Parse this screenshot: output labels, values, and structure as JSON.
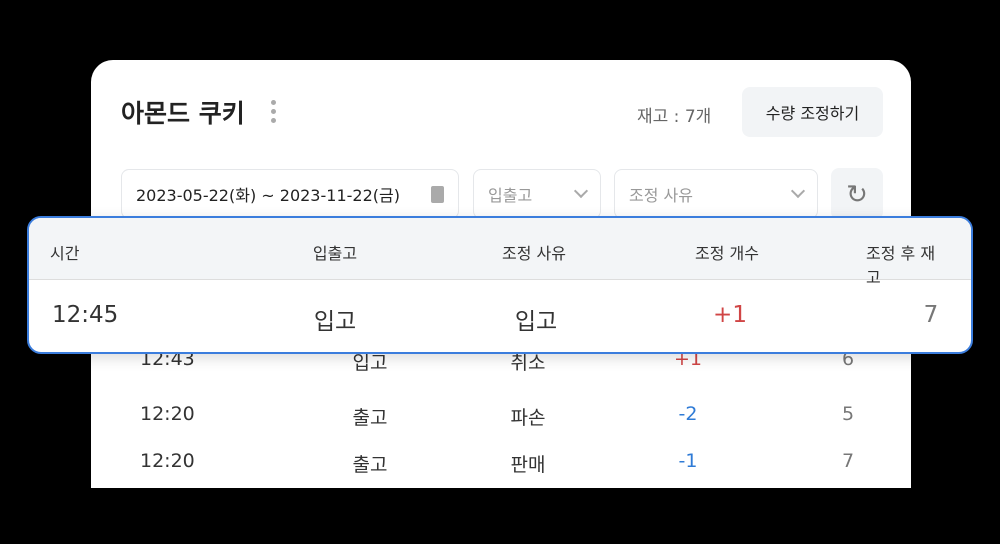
{
  "header": {
    "title": "아몬드 쿠키",
    "stock": "재고 : 7개",
    "adjust_button": "수량 조정하기"
  },
  "filters": {
    "date_range": "2023-05-22(화) ~ 2023-11-22(금)",
    "inout_placeholder": "입출고",
    "reason_placeholder": "조정 사유"
  },
  "table": {
    "columns": [
      "시간",
      "입출고",
      "조정 사유",
      "조정 개수",
      "조정 후 재고"
    ],
    "highlighted_row": {
      "time": "12:45",
      "type": "입고",
      "reason": "입고",
      "count": "+1",
      "after": "7"
    },
    "rows": [
      {
        "time": "12:43",
        "type": "입고",
        "reason": "취소",
        "count": "+1",
        "after": "6"
      },
      {
        "time": "12:20",
        "type": "출고",
        "reason": "파손",
        "count": "-2",
        "after": "5"
      },
      {
        "time": "12:20",
        "type": "출고",
        "reason": "판매",
        "count": "-1",
        "after": "7"
      }
    ]
  },
  "colors": {
    "accent": "#3b7ddd",
    "plus": "#d04545",
    "minus": "#2f7bd6"
  }
}
